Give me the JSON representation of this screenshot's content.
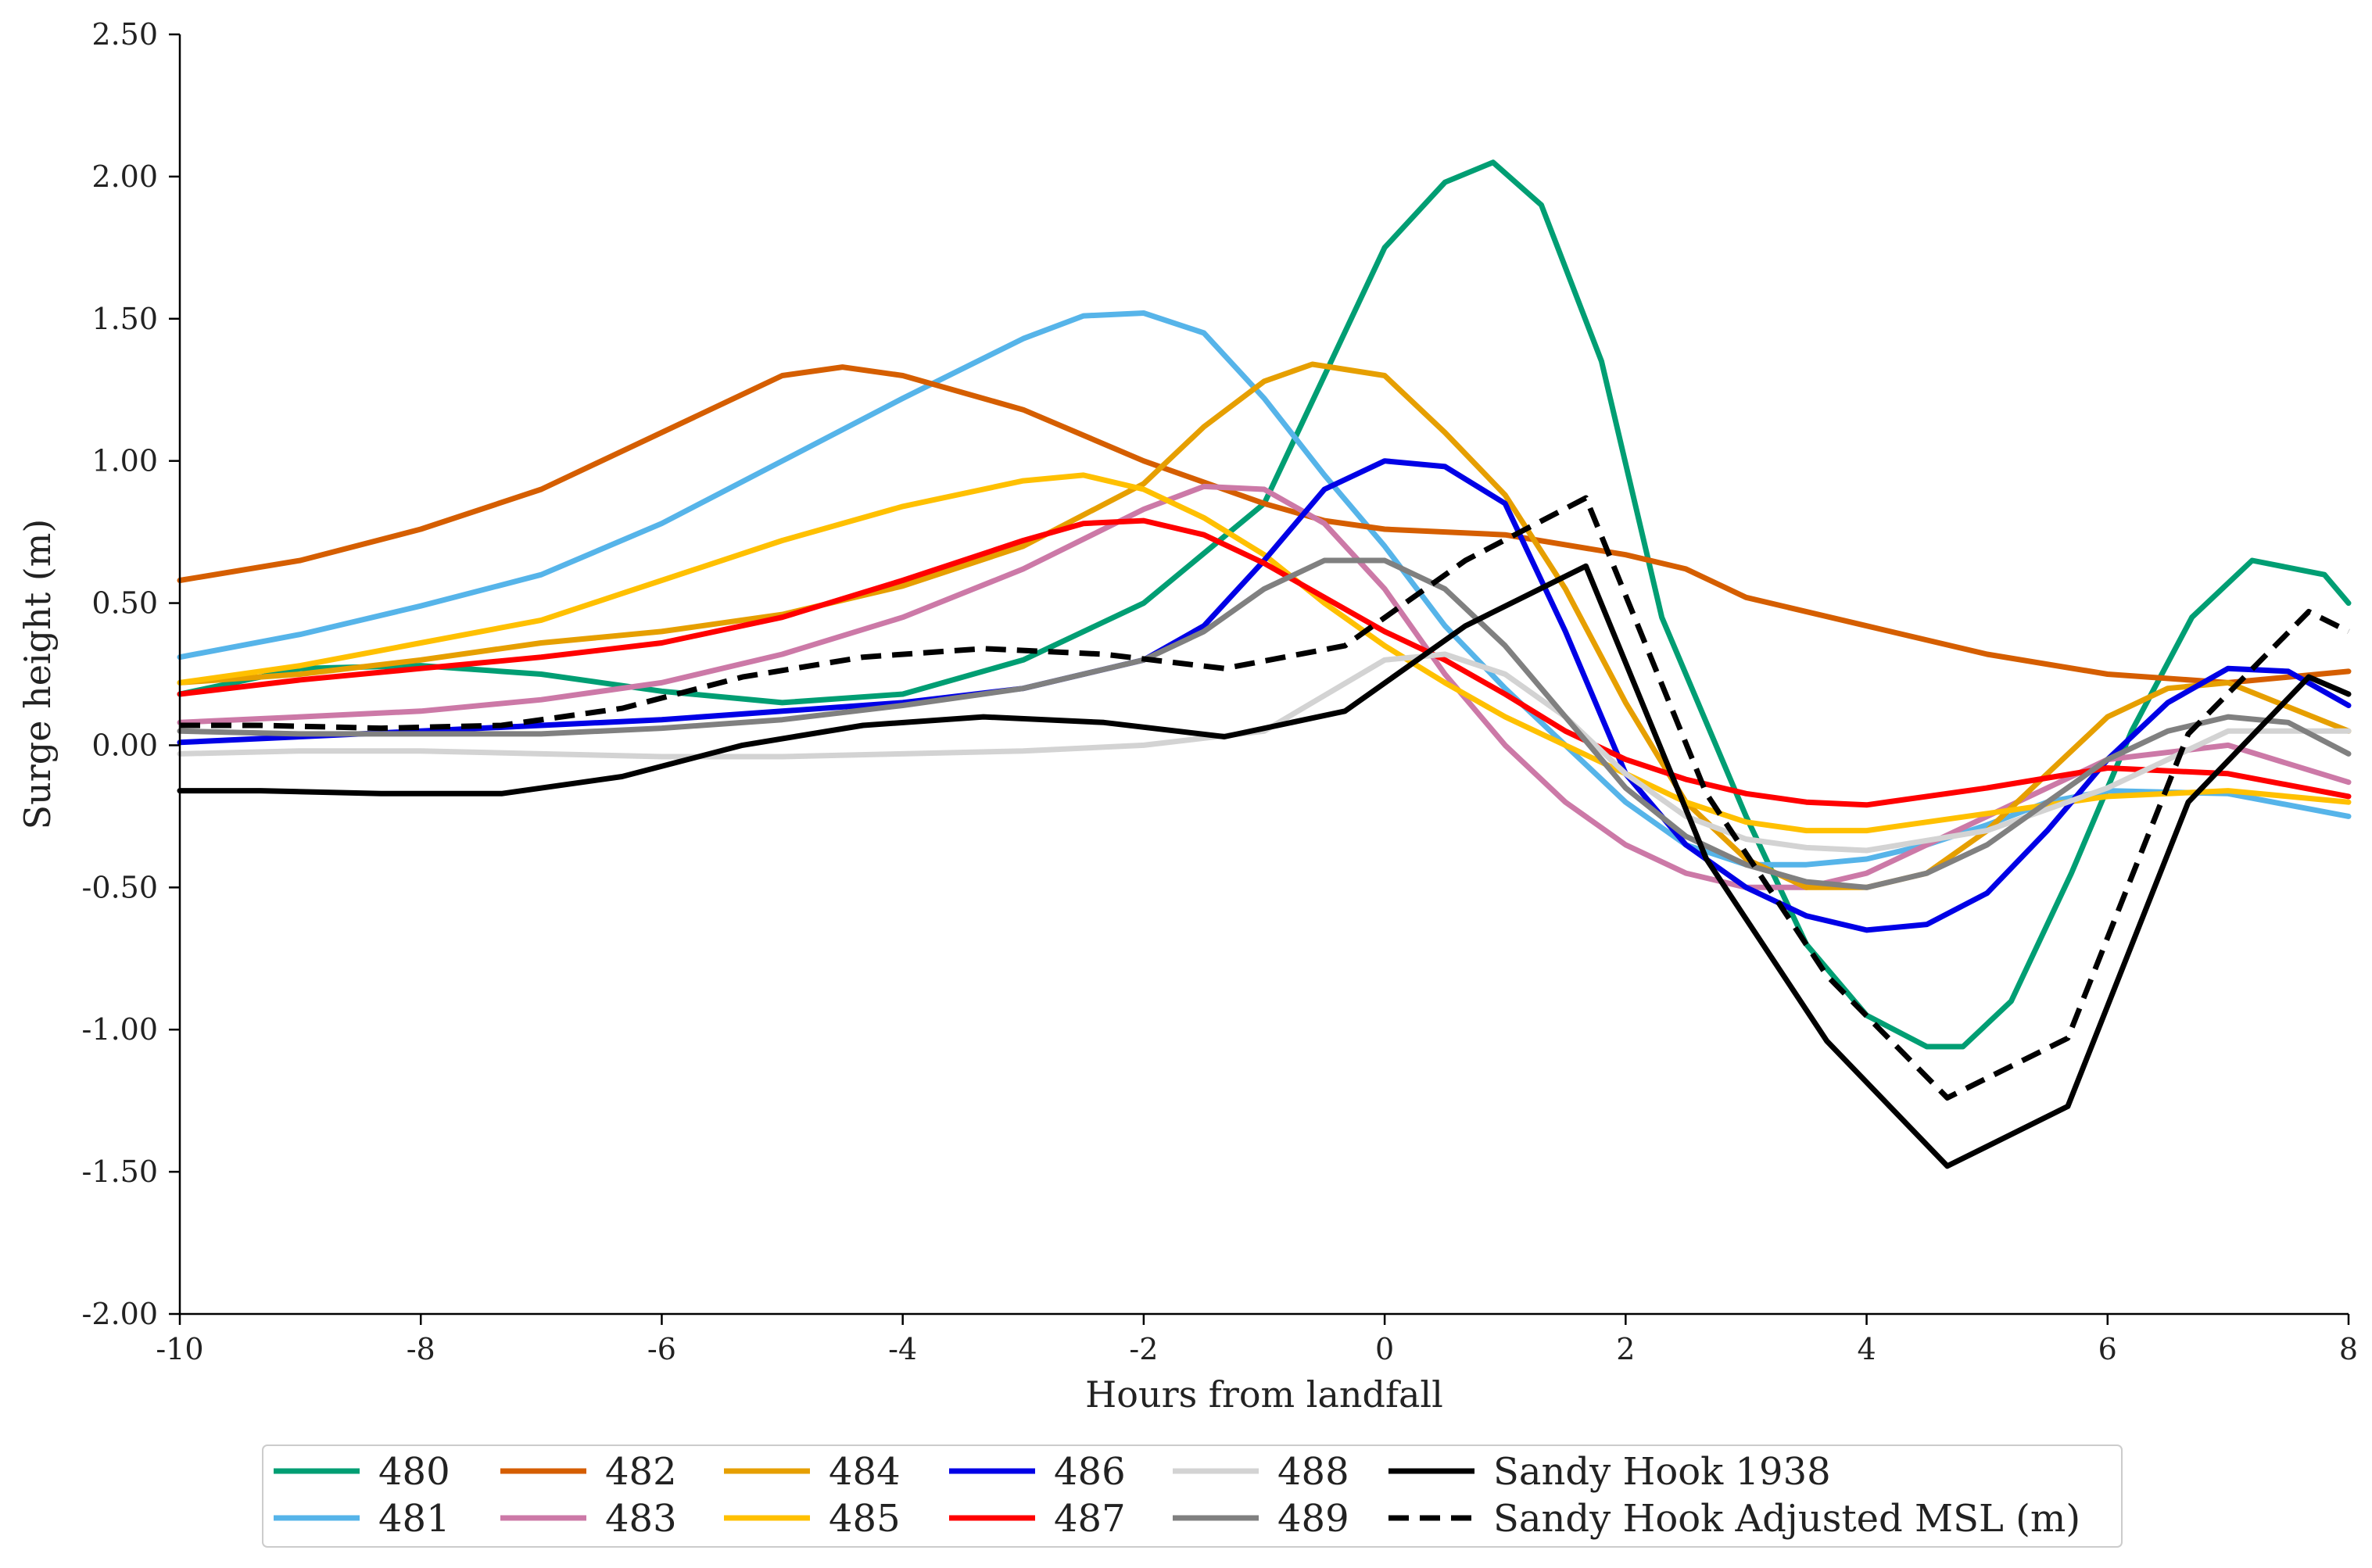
{
  "chart_data": {
    "type": "line",
    "title": "",
    "xlabel": "Hours from landfall",
    "ylabel": "Surge height (m)",
    "xlim": [
      -10,
      8
    ],
    "ylim": [
      -2.0,
      2.5
    ],
    "xticks": [
      -10,
      -8,
      -6,
      -4,
      -2,
      0,
      2,
      4,
      6,
      8
    ],
    "xtick_labels": [
      "-10",
      "-8",
      "-6",
      "-4",
      "-2",
      "0",
      "2",
      "4",
      "6",
      "8"
    ],
    "yticks": [
      -2.0,
      -1.5,
      -1.0,
      -0.5,
      0.0,
      0.5,
      1.0,
      1.5,
      2.0,
      2.5
    ],
    "ytick_labels": [
      "-2.00",
      "-1.50",
      "-1.00",
      "-0.50",
      "0.00",
      "0.50",
      "1.00",
      "1.50",
      "2.00",
      "2.50"
    ],
    "grid": false,
    "legend_position": "bottom-center, outside plot",
    "series": [
      {
        "name": "480",
        "color": "#009E73",
        "dash": "solid",
        "x": [
          -10,
          -9,
          -8,
          -7,
          -6,
          -5,
          -4,
          -3,
          -2,
          -1,
          -0.5,
          0,
          0.5,
          0.9,
          1.3,
          1.8,
          2.3,
          3.0,
          3.5,
          4.0,
          4.5,
          4.8,
          5.2,
          5.7,
          6.2,
          6.7,
          7.2,
          7.8,
          8
        ],
        "y": [
          0.18,
          0.27,
          0.28,
          0.25,
          0.19,
          0.15,
          0.18,
          0.3,
          0.5,
          0.85,
          1.3,
          1.75,
          1.98,
          2.05,
          1.9,
          1.35,
          0.45,
          -0.25,
          -0.7,
          -0.95,
          -1.06,
          -1.06,
          -0.9,
          -0.45,
          0.05,
          0.45,
          0.65,
          0.6,
          0.5
        ]
      },
      {
        "name": "481",
        "color": "#56B4E9",
        "dash": "solid",
        "x": [
          -10,
          -9,
          -8,
          -7,
          -6,
          -5,
          -4,
          -3,
          -2.5,
          -2,
          -1.5,
          -1,
          -0.5,
          0,
          0.5,
          1,
          1.5,
          2,
          2.5,
          3,
          3.5,
          4,
          4.5,
          5,
          5.5,
          6,
          7,
          8
        ],
        "y": [
          0.31,
          0.39,
          0.49,
          0.6,
          0.78,
          1.0,
          1.22,
          1.43,
          1.51,
          1.52,
          1.45,
          1.22,
          0.95,
          0.7,
          0.42,
          0.2,
          0.0,
          -0.2,
          -0.35,
          -0.42,
          -0.42,
          -0.4,
          -0.35,
          -0.28,
          -0.2,
          -0.16,
          -0.17,
          -0.25
        ]
      },
      {
        "name": "482",
        "color": "#D55E00",
        "dash": "solid",
        "x": [
          -10,
          -9,
          -8,
          -7,
          -6,
          -5,
          -4.5,
          -4,
          -3,
          -2,
          -1,
          -0.5,
          0,
          1,
          2,
          2.5,
          3,
          4,
          5,
          6,
          7,
          8
        ],
        "y": [
          0.58,
          0.65,
          0.76,
          0.9,
          1.1,
          1.3,
          1.33,
          1.3,
          1.18,
          1.0,
          0.85,
          0.79,
          0.76,
          0.74,
          0.67,
          0.62,
          0.52,
          0.42,
          0.32,
          0.25,
          0.22,
          0.26
        ]
      },
      {
        "name": "483",
        "color": "#CC79A7",
        "dash": "solid",
        "x": [
          -10,
          -9,
          -8,
          -7,
          -6,
          -5,
          -4,
          -3,
          -2,
          -1.5,
          -1,
          -0.5,
          0,
          0.5,
          1,
          1.5,
          2,
          2.5,
          3,
          3.5,
          4,
          5,
          6,
          7,
          8
        ],
        "y": [
          0.08,
          0.1,
          0.12,
          0.16,
          0.22,
          0.32,
          0.45,
          0.62,
          0.83,
          0.91,
          0.9,
          0.78,
          0.55,
          0.25,
          0.0,
          -0.2,
          -0.35,
          -0.45,
          -0.5,
          -0.5,
          -0.45,
          -0.25,
          -0.05,
          0.0,
          -0.13
        ]
      },
      {
        "name": "484",
        "color": "#E69F00",
        "dash": "solid",
        "x": [
          -10,
          -9,
          -8,
          -7,
          -6,
          -5,
          -4,
          -3,
          -2,
          -1.5,
          -1,
          -0.6,
          0,
          0.5,
          1,
          1.5,
          2,
          2.5,
          3,
          3.5,
          4,
          4.5,
          5,
          5.5,
          6,
          6.5,
          7,
          8
        ],
        "y": [
          0.22,
          0.25,
          0.3,
          0.36,
          0.4,
          0.46,
          0.56,
          0.7,
          0.92,
          1.12,
          1.28,
          1.34,
          1.3,
          1.1,
          0.88,
          0.55,
          0.15,
          -0.2,
          -0.4,
          -0.5,
          -0.5,
          -0.45,
          -0.3,
          -0.1,
          0.1,
          0.2,
          0.22,
          0.05
        ]
      },
      {
        "name": "485",
        "color": "#FFC000",
        "dash": "solid",
        "x": [
          -10,
          -9,
          -8,
          -7,
          -6,
          -5,
          -4,
          -3,
          -2.5,
          -2,
          -1.5,
          -1,
          -0.5,
          0,
          0.5,
          1,
          1.5,
          2,
          2.5,
          3,
          3.5,
          4,
          5,
          6,
          7,
          8
        ],
        "y": [
          0.22,
          0.28,
          0.36,
          0.44,
          0.58,
          0.72,
          0.84,
          0.93,
          0.95,
          0.9,
          0.8,
          0.67,
          0.5,
          0.35,
          0.22,
          0.1,
          0.0,
          -0.1,
          -0.2,
          -0.27,
          -0.3,
          -0.3,
          -0.24,
          -0.18,
          -0.16,
          -0.2
        ]
      },
      {
        "name": "486",
        "color": "#0000E6",
        "dash": "solid",
        "x": [
          -10,
          -9,
          -8,
          -7,
          -6,
          -5,
          -4,
          -3,
          -2,
          -1.5,
          -1,
          -0.5,
          0,
          0.5,
          1,
          1.5,
          2,
          2.5,
          3,
          3.5,
          4,
          4.5,
          5,
          5.5,
          6,
          6.5,
          7,
          7.5,
          8
        ],
        "y": [
          0.01,
          0.03,
          0.05,
          0.07,
          0.09,
          0.12,
          0.15,
          0.2,
          0.3,
          0.42,
          0.65,
          0.9,
          1.0,
          0.98,
          0.85,
          0.4,
          -0.1,
          -0.35,
          -0.5,
          -0.6,
          -0.65,
          -0.63,
          -0.52,
          -0.3,
          -0.05,
          0.15,
          0.27,
          0.26,
          0.14
        ]
      },
      {
        "name": "487",
        "color": "#FF0000",
        "dash": "solid",
        "x": [
          -10,
          -9,
          -8,
          -7,
          -6,
          -5,
          -4,
          -3,
          -2.5,
          -2,
          -1.5,
          -1,
          -0.5,
          0,
          0.5,
          1,
          1.5,
          2,
          2.5,
          3,
          3.5,
          4,
          5,
          6,
          7,
          8
        ],
        "y": [
          0.18,
          0.23,
          0.27,
          0.31,
          0.36,
          0.45,
          0.58,
          0.72,
          0.78,
          0.79,
          0.74,
          0.64,
          0.52,
          0.4,
          0.3,
          0.18,
          0.05,
          -0.05,
          -0.12,
          -0.17,
          -0.2,
          -0.21,
          -0.15,
          -0.08,
          -0.1,
          -0.18
        ]
      },
      {
        "name": "488",
        "color": "#D3D3D3",
        "dash": "solid",
        "x": [
          -10,
          -9,
          -8,
          -7,
          -6,
          -5,
          -4,
          -3,
          -2,
          -1,
          0,
          0.5,
          1,
          1.5,
          2,
          2.5,
          3,
          3.5,
          4,
          5,
          6,
          7,
          8
        ],
        "y": [
          -0.03,
          -0.02,
          -0.02,
          -0.03,
          -0.04,
          -0.04,
          -0.03,
          -0.02,
          0.0,
          0.05,
          0.3,
          0.32,
          0.25,
          0.1,
          -0.1,
          -0.25,
          -0.33,
          -0.36,
          -0.37,
          -0.3,
          -0.15,
          0.05,
          0.05
        ]
      },
      {
        "name": "489",
        "color": "#808080",
        "dash": "solid",
        "x": [
          -10,
          -9,
          -8,
          -7,
          -6,
          -5,
          -4,
          -3,
          -2,
          -1.5,
          -1,
          -0.5,
          0,
          0.5,
          1,
          1.5,
          2,
          2.5,
          3,
          3.5,
          4,
          4.5,
          5,
          5.5,
          6,
          6.5,
          7,
          7.5,
          8
        ],
        "y": [
          0.05,
          0.04,
          0.04,
          0.04,
          0.06,
          0.09,
          0.14,
          0.2,
          0.3,
          0.4,
          0.55,
          0.65,
          0.65,
          0.55,
          0.35,
          0.1,
          -0.15,
          -0.32,
          -0.42,
          -0.48,
          -0.5,
          -0.45,
          -0.35,
          -0.2,
          -0.05,
          0.05,
          0.1,
          0.08,
          -0.03
        ]
      },
      {
        "name": "Sandy Hook 1938",
        "color": "#000000",
        "dash": "solid",
        "x": [
          -10,
          -9.33,
          -8.33,
          -7.33,
          -6.33,
          -5.33,
          -4.33,
          -3.33,
          -2.33,
          -1.33,
          -0.33,
          0.67,
          1.67,
          2.67,
          3.67,
          4.67,
          5.67,
          6.67,
          7.67,
          8
        ],
        "y": [
          -0.16,
          -0.16,
          -0.17,
          -0.17,
          -0.11,
          0.0,
          0.07,
          0.1,
          0.08,
          0.03,
          0.12,
          0.42,
          0.63,
          -0.4,
          -1.04,
          -1.48,
          -1.27,
          -0.2,
          0.24,
          0.18
        ]
      },
      {
        "name": "Sandy Hook Adjusted MSL (m)",
        "color": "#000000",
        "dash": "dashed",
        "x": [
          -10,
          -9.33,
          -8.33,
          -7.33,
          -6.33,
          -5.33,
          -4.33,
          -3.33,
          -2.33,
          -1.33,
          -0.33,
          0.67,
          1.67,
          2.67,
          3.67,
          4.67,
          5.67,
          6.67,
          7.67,
          8
        ],
        "y": [
          0.07,
          0.07,
          0.06,
          0.07,
          0.13,
          0.24,
          0.31,
          0.34,
          0.32,
          0.27,
          0.35,
          0.65,
          0.87,
          -0.17,
          -0.81,
          -1.24,
          -1.03,
          0.04,
          0.47,
          0.4
        ]
      }
    ]
  }
}
